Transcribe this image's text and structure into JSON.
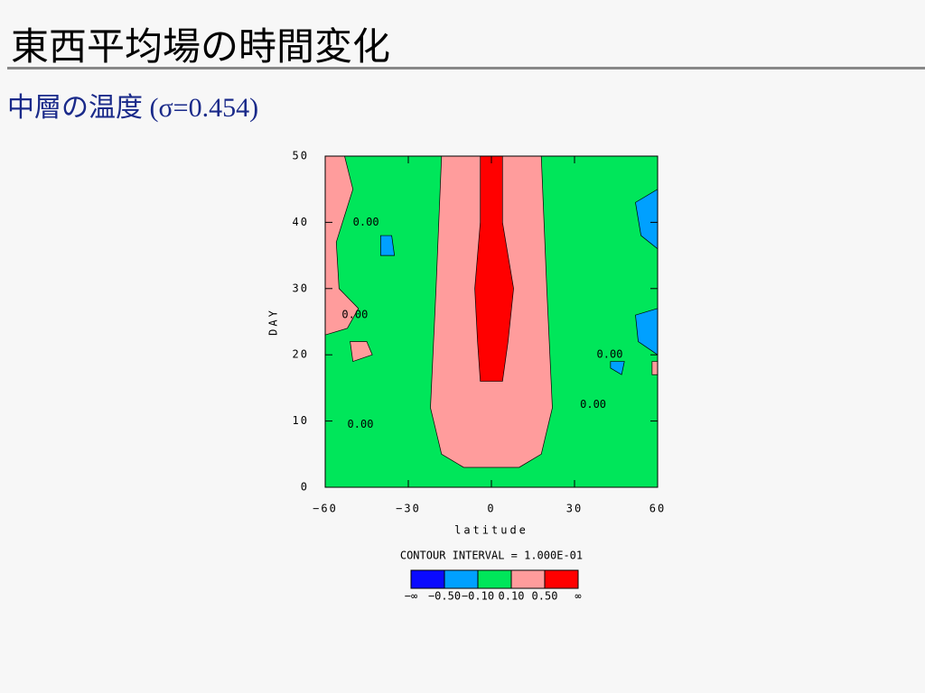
{
  "header": {
    "title": "東西平均場の時間変化",
    "subtitle": "中層の温度 (σ=0.454)"
  },
  "chart_data": {
    "type": "contour",
    "xlabel": "latitude",
    "ylabel": "DAY",
    "note": "CONTOUR INTERVAL = 1.000E-01",
    "xlim": [
      -60,
      60
    ],
    "ylim": [
      0,
      50
    ],
    "xticks": [
      {
        "value": -60,
        "label": "−60"
      },
      {
        "value": -30,
        "label": "−30"
      },
      0,
      30,
      60
    ],
    "yticks": [
      0,
      10,
      20,
      30,
      40,
      50
    ],
    "colorbar": {
      "colors": [
        "#0a0aff",
        "#00a0ff",
        "#00e65a",
        "#ff9c9c",
        "#ff0000"
      ],
      "labels": [
        "−∞",
        "−0.50",
        "−0.10",
        "0.10",
        "0.50",
        "∞"
      ]
    },
    "regions": [
      {
        "color": "#00e65a",
        "x": [
          -60,
          60,
          60,
          -60
        ],
        "y": [
          0,
          0,
          50,
          50
        ]
      },
      {
        "color": "#ff9c9c",
        "x": [
          -60,
          -53,
          -50,
          -56,
          -55,
          -48,
          -52,
          -60
        ],
        "y": [
          50,
          50,
          45,
          37,
          30,
          27,
          24,
          23
        ]
      },
      {
        "color": "#ff9c9c",
        "x": [
          -51,
          -45,
          -43,
          -50
        ],
        "y": [
          22,
          22,
          20,
          19
        ]
      },
      {
        "color": "#ff9c9c",
        "x": [
          -18,
          -10,
          10,
          18,
          22,
          20,
          18,
          -18,
          -20,
          -22
        ],
        "y": [
          5,
          3,
          3,
          5,
          12,
          30,
          50,
          50,
          30,
          12
        ]
      },
      {
        "color": "#ff0000",
        "x": [
          -4,
          4,
          6,
          8,
          4,
          4,
          -4,
          -4,
          -6,
          -5
        ],
        "y": [
          16,
          16,
          22,
          30,
          40,
          50,
          50,
          40,
          30,
          22
        ]
      },
      {
        "color": "#00a0ff",
        "x": [
          -40,
          -36,
          -35,
          -40
        ],
        "y": [
          38,
          38,
          35,
          35
        ]
      },
      {
        "color": "#00a0ff",
        "x": [
          52,
          60,
          60,
          54
        ],
        "y": [
          43,
          45,
          36,
          38
        ]
      },
      {
        "color": "#00a0ff",
        "x": [
          52,
          60,
          60,
          53
        ],
        "y": [
          26,
          27,
          20,
          22
        ]
      },
      {
        "color": "#00a0ff",
        "x": [
          43,
          48,
          47,
          43
        ],
        "y": [
          19,
          19,
          17,
          18
        ]
      },
      {
        "color": "#ff9c9c",
        "x": [
          58,
          60,
          60,
          58
        ],
        "y": [
          19,
          19,
          17,
          17
        ]
      }
    ],
    "annotations": [
      {
        "text": "0.00",
        "x": -50,
        "y": 40
      },
      {
        "text": "0.00",
        "x": -54,
        "y": 26
      },
      {
        "text": "0.00",
        "x": -52,
        "y": 9.5
      },
      {
        "text": "0.00",
        "x": 32,
        "y": 12.5
      },
      {
        "text": "0.00",
        "x": 38,
        "y": 20
      }
    ]
  }
}
